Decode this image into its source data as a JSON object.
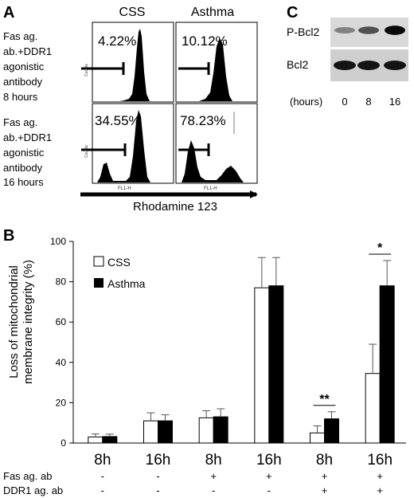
{
  "panel_a": {
    "label": "A",
    "col_headers": [
      "CSS",
      "Asthma"
    ],
    "row_labels": [
      [
        "Fas ag.",
        "ab.+DDR1",
        "agonistic",
        "antibody",
        "8 hours"
      ],
      [
        "Fas ag.",
        "ab.+DDR1",
        "agonistic",
        "antibody",
        "16 hours"
      ]
    ],
    "percentages": [
      "4.22%",
      "10.12%",
      "34.55%",
      "78.23%"
    ],
    "x_axis_label": "Rhodamine 123",
    "y_tick_label": "Counts",
    "x_tick_label": "FL1-H"
  },
  "panel_c": {
    "label": "C",
    "row_labels": [
      "P-Bcl2",
      "Bcl2"
    ],
    "hours_label": "(hours)",
    "hours": [
      "0",
      "8",
      "16"
    ],
    "pbcl2_intensity": [
      0.35,
      0.6,
      0.95
    ],
    "bcl2_intensity": [
      0.9,
      0.9,
      0.9
    ]
  },
  "chart_data": {
    "label": "B",
    "type": "bar",
    "ylabel": "Loss of mitochondrial membrane integrity (%)",
    "ylabel_lines": [
      "Loss of mitochondrial",
      "membrane integrity (%)"
    ],
    "ylim": [
      0,
      100
    ],
    "yticks": [
      "0",
      "20",
      "40",
      "60",
      "80",
      "100"
    ],
    "categories": [
      "8h",
      "16h",
      "8h",
      "16h",
      "8h",
      "16h"
    ],
    "series": [
      {
        "name": "CSS",
        "color": "#ffffff",
        "values": [
          3,
          11,
          12.5,
          77,
          5,
          34.5
        ],
        "errors": [
          1.5,
          4,
          3.5,
          15,
          3.5,
          14.5
        ]
      },
      {
        "name": "Asthma",
        "color": "#000000",
        "values": [
          3.2,
          11,
          13,
          78,
          12,
          78
        ],
        "errors": [
          1.2,
          3,
          4,
          14,
          3.5,
          12.5
        ]
      }
    ],
    "legend_placement": "top-left",
    "significance": [
      {
        "group": 4,
        "mark": "**"
      },
      {
        "group": 5,
        "mark": "*"
      }
    ],
    "conditions": [
      {
        "label": "Fas ag. ab",
        "values": [
          "-",
          "-",
          "+",
          "+",
          "+",
          "+"
        ]
      },
      {
        "label": "DDR1 ag. ab",
        "values": [
          "-",
          "-",
          "-",
          "-",
          "+",
          "+"
        ]
      }
    ]
  }
}
